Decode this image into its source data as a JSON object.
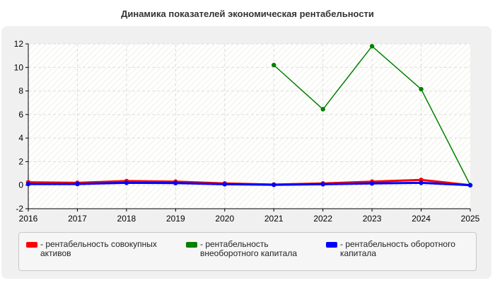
{
  "title": "Динамика показателей экономическая рентабельности",
  "chart_data": {
    "type": "line",
    "title": "Динамика показателей экономическая рентабельности",
    "xlabel": "",
    "ylabel": "",
    "x": [
      "2016",
      "2017",
      "2018",
      "2019",
      "2020",
      "2021",
      "2022",
      "2023",
      "2024",
      "2025"
    ],
    "ylim": [
      -2,
      12
    ],
    "yticks": [
      -2,
      0,
      2,
      4,
      6,
      8,
      10,
      12
    ],
    "grid": true,
    "legend_position": "bottom",
    "series": [
      {
        "name": "рентабельность совокупных активов",
        "legend_label": "- рентабельность совокупных\nактивов",
        "color": "#ff0000",
        "values": [
          0.25,
          0.2,
          0.35,
          0.3,
          0.15,
          0.05,
          0.15,
          0.3,
          0.45,
          0.0
        ]
      },
      {
        "name": "рентабельность внеоборотного капитала",
        "legend_label": "- рентабельность\nвнеоборотного капитала",
        "color": "#008000",
        "values": [
          null,
          null,
          null,
          null,
          null,
          10.2,
          6.45,
          11.8,
          8.15,
          0.0
        ]
      },
      {
        "name": "рентабельность оборотного капитала",
        "legend_label": "- рентабельность оборотного\nкапитала",
        "color": "#0000ff",
        "values": [
          0.1,
          0.1,
          0.2,
          0.18,
          0.08,
          0.03,
          0.08,
          0.15,
          0.2,
          0.0
        ]
      }
    ]
  }
}
